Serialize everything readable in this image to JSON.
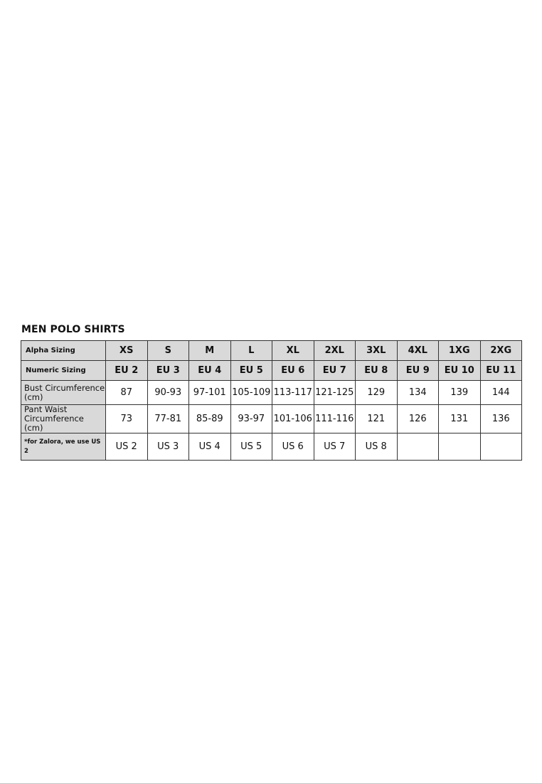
{
  "title": "MEN POLO SHIRTS",
  "table": {
    "rows": [
      {
        "label": "Alpha Sizing",
        "head": true,
        "cells": [
          "XS",
          "S",
          "M",
          "L",
          "XL",
          "2XL",
          "3XL",
          "4XL",
          "1XG",
          "2XG"
        ]
      },
      {
        "label": "Numeric Sizing",
        "head": true,
        "cells": [
          "EU 2",
          "EU 3",
          "EU 4",
          "EU 5",
          "EU 6",
          "EU 7",
          "EU 8",
          "EU 9",
          "EU 10",
          "EU 11"
        ]
      },
      {
        "label": "Bust Circumference (cm)",
        "head": false,
        "cells": [
          "87",
          "90-93",
          "97-101",
          "105-109",
          "113-117",
          "121-125",
          "129",
          "134",
          "139",
          "144"
        ]
      },
      {
        "label": "Pant Waist Circumference (cm)",
        "head": false,
        "cells": [
          "73",
          "77-81",
          "85-89",
          "93-97",
          "101-106",
          "111-116",
          "121",
          "126",
          "131",
          "136"
        ]
      },
      {
        "label": "*for Zalora, we use US 2",
        "head": false,
        "note": true,
        "cells": [
          "US 2",
          "US 3",
          "US 4",
          "US 5",
          "US 6",
          "US 7",
          "US 8",
          "",
          "",
          ""
        ]
      }
    ]
  },
  "colors": {
    "header_bg": "#d9d9d9",
    "border": "#333333"
  }
}
